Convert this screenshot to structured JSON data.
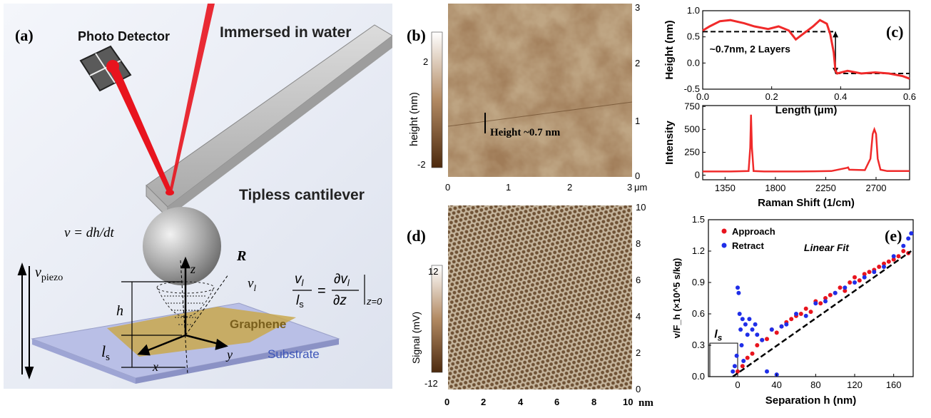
{
  "panel_a": {
    "label": "(a)",
    "photo_detector": "Photo Detector",
    "immersed": "Immersed in water",
    "cantilever": "Tipless cantilever",
    "velocity_eq": "v = dh/dt",
    "radius": "R",
    "vpiezo_v": "v",
    "vpiezo_sub": "piezo",
    "h": "h",
    "ls_l": "l",
    "ls_sub": "s",
    "z": "z",
    "x": "x",
    "y": "y",
    "vl_v": "v",
    "vl_sub": "l",
    "graphene": "Graphene",
    "substrate": "Substrate",
    "slip_eq_left_num": "v",
    "slip_eq_left_num_sub": "l",
    "slip_eq_left_den": "l",
    "slip_eq_left_den_sub": "s",
    "slip_eq_right_num": "∂v",
    "slip_eq_right_num_sub": "l",
    "slip_eq_right_den": "∂z",
    "slip_eq_eval": "z=0",
    "colors": {
      "laser": "#e8141e",
      "graphene": "#c9a84d",
      "substrate": "#b9bfe6"
    }
  },
  "panel_b": {
    "label": "(b)",
    "cbar_title": "height (nm)",
    "cbar_ticks": [
      "2",
      "-2"
    ],
    "annotation": "Height ~0.7 nm",
    "x_ticks": [
      "0",
      "1",
      "2",
      "3"
    ],
    "x_unit": "μm",
    "y_ticks": [
      "0",
      "1",
      "2",
      "3"
    ]
  },
  "panel_c": {
    "label": "(c)",
    "annotation": "~0.7nm, 2 Layers"
  },
  "panel_d": {
    "label": "(d)",
    "cbar_title": "Signal (mV)",
    "cbar_ticks": [
      "12",
      "-12"
    ],
    "x_ticks": [
      "0",
      "2",
      "4",
      "6",
      "8",
      "10"
    ],
    "x_unit": "nm",
    "y_ticks": [
      "0",
      "2",
      "4",
      "6",
      "8",
      "10"
    ]
  },
  "panel_e": {
    "label": "(e)",
    "fit_label": "Linear Fit",
    "ls_label": "l",
    "ls_sub": "s"
  },
  "chart_data": [
    {
      "type": "line",
      "title": "",
      "xlabel": "Length (μm)",
      "ylabel": "Height (nm)",
      "xlim": [
        0,
        0.6
      ],
      "ylim": [
        -0.5,
        1.0
      ],
      "x_ticks": [
        "0.0",
        "0.2",
        "0.4",
        "0.6"
      ],
      "y_ticks": [
        "1.0",
        "0.5",
        "0.0",
        "-0.5"
      ],
      "series": [
        {
          "x": [
            0.0,
            0.02,
            0.05,
            0.08,
            0.12,
            0.15,
            0.19,
            0.22,
            0.25,
            0.27,
            0.3,
            0.32,
            0.34,
            0.36,
            0.37,
            0.38,
            0.385,
            0.39,
            0.42,
            0.46,
            0.5,
            0.54,
            0.58,
            0.6
          ],
          "y": [
            0.62,
            0.7,
            0.8,
            0.82,
            0.76,
            0.7,
            0.65,
            0.7,
            0.62,
            0.45,
            0.6,
            0.7,
            0.82,
            0.75,
            0.55,
            0.2,
            -0.15,
            -0.2,
            -0.15,
            -0.2,
            -0.18,
            -0.2,
            -0.25,
            -0.3
          ]
        }
      ],
      "dashed_levels": [
        0.6,
        -0.2
      ]
    },
    {
      "type": "line",
      "title": "",
      "xlabel": "Raman Shift (1/cm)",
      "ylabel": "Intensity",
      "xlim": [
        1150,
        3000
      ],
      "ylim": [
        -50,
        760
      ],
      "x_ticks": [
        "1350",
        "1800",
        "2250",
        "2700"
      ],
      "y_ticks": [
        "750",
        "500",
        "250",
        "0"
      ],
      "series": [
        {
          "x": [
            1150,
            1400,
            1560,
            1575,
            1582,
            1590,
            1605,
            1700,
            2000,
            2300,
            2440,
            2450,
            2460,
            2600,
            2650,
            2670,
            2685,
            2700,
            2715,
            2740,
            2800,
            3000
          ],
          "y": [
            40,
            40,
            45,
            300,
            660,
            300,
            45,
            40,
            40,
            45,
            80,
            85,
            60,
            55,
            180,
            450,
            500,
            450,
            180,
            60,
            45,
            45
          ]
        }
      ]
    },
    {
      "type": "scatter",
      "title": "",
      "xlabel": "Separation h (nm)",
      "ylabel": "v/F_h (×10^5 s/kg)",
      "xlim": [
        -30,
        180
      ],
      "ylim": [
        0,
        1.5
      ],
      "x_ticks": [
        "0",
        "40",
        "80",
        "120",
        "160"
      ],
      "y_ticks": [
        "1.5",
        "1.2",
        "0.9",
        "0.6",
        "0.3",
        "0.0"
      ],
      "legend": "top-left",
      "series": [
        {
          "name": "Approach",
          "color": "#e8141e",
          "x": [
            0,
            5,
            10,
            15,
            20,
            25,
            30,
            35,
            40,
            45,
            50,
            55,
            60,
            65,
            70,
            75,
            80,
            85,
            90,
            95,
            100,
            105,
            110,
            115,
            120,
            125,
            130,
            135,
            140,
            145,
            150,
            155,
            160,
            165,
            170,
            175
          ],
          "y": [
            0.05,
            0.1,
            0.18,
            0.22,
            0.3,
            0.35,
            0.36,
            0.45,
            0.42,
            0.48,
            0.52,
            0.55,
            0.58,
            0.6,
            0.65,
            0.62,
            0.72,
            0.7,
            0.75,
            0.78,
            0.8,
            0.85,
            0.82,
            0.9,
            0.95,
            0.92,
            0.98,
            1.0,
            1.02,
            1.05,
            1.08,
            1.1,
            1.12,
            1.15,
            1.2,
            1.18
          ]
        },
        {
          "name": "Retract",
          "color": "#1f2ee8",
          "x": [
            -5,
            -3,
            -1,
            0,
            1,
            2,
            3,
            4,
            5,
            6,
            8,
            10,
            12,
            15,
            18,
            20,
            25,
            30,
            35,
            40,
            45,
            50,
            60,
            70,
            80,
            90,
            100,
            110,
            120,
            130,
            140,
            150,
            160,
            170,
            175,
            178
          ],
          "y": [
            0.05,
            0.1,
            0.2,
            0.85,
            0.8,
            0.6,
            0.45,
            0.3,
            0.55,
            0.15,
            0.5,
            0.4,
            0.55,
            0.45,
            0.5,
            0.4,
            0.35,
            0.05,
            0.45,
            0.02,
            0.48,
            0.5,
            0.6,
            0.58,
            0.7,
            0.72,
            0.8,
            0.85,
            0.9,
            0.95,
            1.0,
            1.05,
            1.15,
            1.25,
            1.32,
            1.37
          ]
        },
        {
          "name": "Linear Fit",
          "type": "line",
          "x": [
            -5,
            178
          ],
          "y": [
            0.0,
            1.2
          ]
        }
      ]
    }
  ]
}
